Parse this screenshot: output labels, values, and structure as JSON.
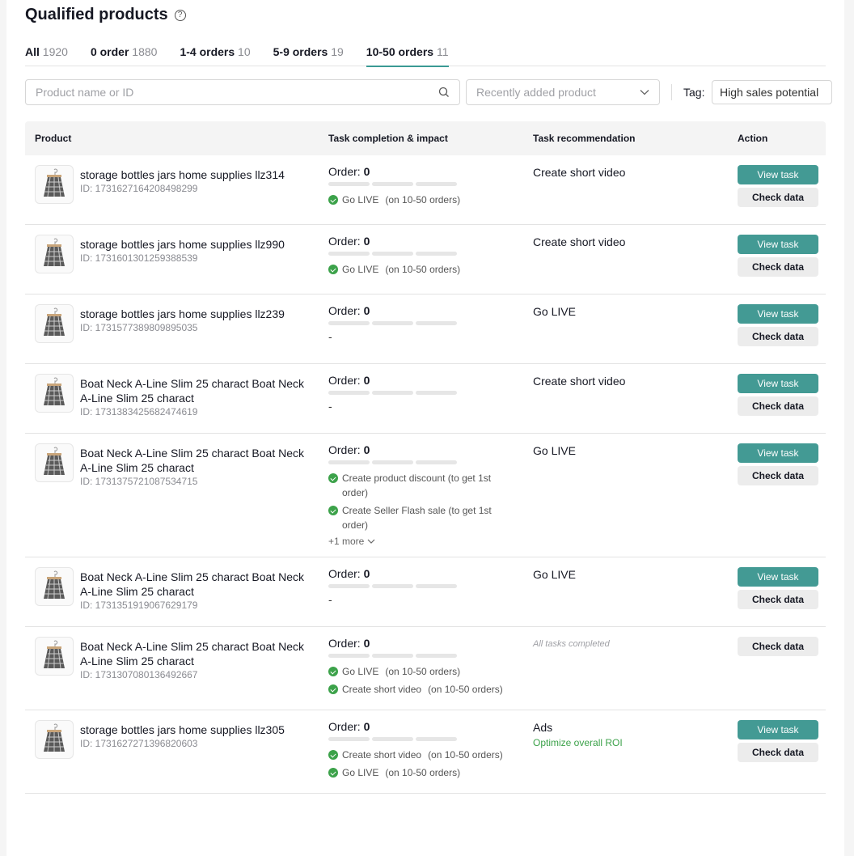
{
  "title": "Qualified products",
  "tabs": [
    {
      "label": "All",
      "count": "1920"
    },
    {
      "label": "0 order",
      "count": "1880"
    },
    {
      "label": "1-4 orders",
      "count": "10"
    },
    {
      "label": "5-9 orders",
      "count": "19"
    },
    {
      "label": "10-50 orders",
      "count": "11",
      "active": true
    }
  ],
  "search": {
    "placeholder": "Product name or ID",
    "value": ""
  },
  "sort": {
    "value": "Recently added product"
  },
  "tag": {
    "label": "Tag:",
    "value": "High sales potential"
  },
  "columns": {
    "product": "Product",
    "task": "Task completion & impact",
    "rec": "Task recommendation",
    "action": "Action"
  },
  "order_label": "Order: ",
  "buttons": {
    "view": "View task",
    "check": "Check data"
  },
  "colors": {
    "accent": "#439a94",
    "success": "#3ca24a"
  },
  "rows": [
    {
      "name": "storage bottles jars home supplies llz314",
      "id": "ID: 1731627164208498299",
      "order": "0",
      "tasks": [
        {
          "text": "Go LIVE",
          "note": "(on 10-50 orders)"
        }
      ],
      "rec": "Create short video",
      "view": true
    },
    {
      "name": "storage bottles jars home supplies llz990",
      "id": "ID: 1731601301259388539",
      "order": "0",
      "tasks": [
        {
          "text": "Go LIVE",
          "note": "(on 10-50 orders)"
        }
      ],
      "rec": "Create short video",
      "view": true
    },
    {
      "name": "storage bottles jars home supplies llz239",
      "id": "ID: 1731577389809895035",
      "order": "0",
      "tasks": [],
      "empty": "-",
      "rec": "Go LIVE",
      "view": true
    },
    {
      "name": "Boat Neck A-Line Slim 25 charact Boat Neck A-Line Slim 25 charact",
      "id": "ID: 1731383425682474619",
      "order": "0",
      "tasks": [],
      "empty": "-",
      "rec": "Create short video",
      "view": true
    },
    {
      "name": "Boat Neck A-Line Slim 25 charact Boat Neck A-Line Slim 25 charact",
      "id": "ID: 1731375721087534715",
      "order": "0",
      "tasks": [
        {
          "text": "Create product discount (to get 1st order)",
          "note": ""
        },
        {
          "text": "Create Seller Flash sale (to get 1st order)",
          "note": ""
        }
      ],
      "more": "+1 more",
      "rec": "Go LIVE",
      "view": true
    },
    {
      "name": "Boat Neck A-Line Slim 25 charact Boat Neck A-Line Slim 25 charact",
      "id": "ID: 1731351919067629179",
      "order": "0",
      "tasks": [],
      "empty": "-",
      "rec": "Go LIVE",
      "view": true
    },
    {
      "name": "Boat Neck A-Line Slim 25 charact Boat Neck A-Line Slim 25 charact",
      "id": "ID: 1731307080136492667",
      "order": "0",
      "tasks": [
        {
          "text": "Go LIVE",
          "note": "(on 10-50 orders)"
        },
        {
          "text": "Create short video",
          "note": "(on 10-50 orders)"
        }
      ],
      "rec_done": "All tasks completed",
      "view": false
    },
    {
      "name": "storage bottles jars home supplies llz305",
      "id": "ID: 1731627271396820603",
      "order": "0",
      "tasks": [
        {
          "text": "Create short video",
          "note": "(on 10-50 orders)"
        },
        {
          "text": "Go LIVE",
          "note": "(on 10-50 orders)"
        }
      ],
      "rec": "Ads",
      "rec_sub": "Optimize overall ROI",
      "view": true
    }
  ]
}
